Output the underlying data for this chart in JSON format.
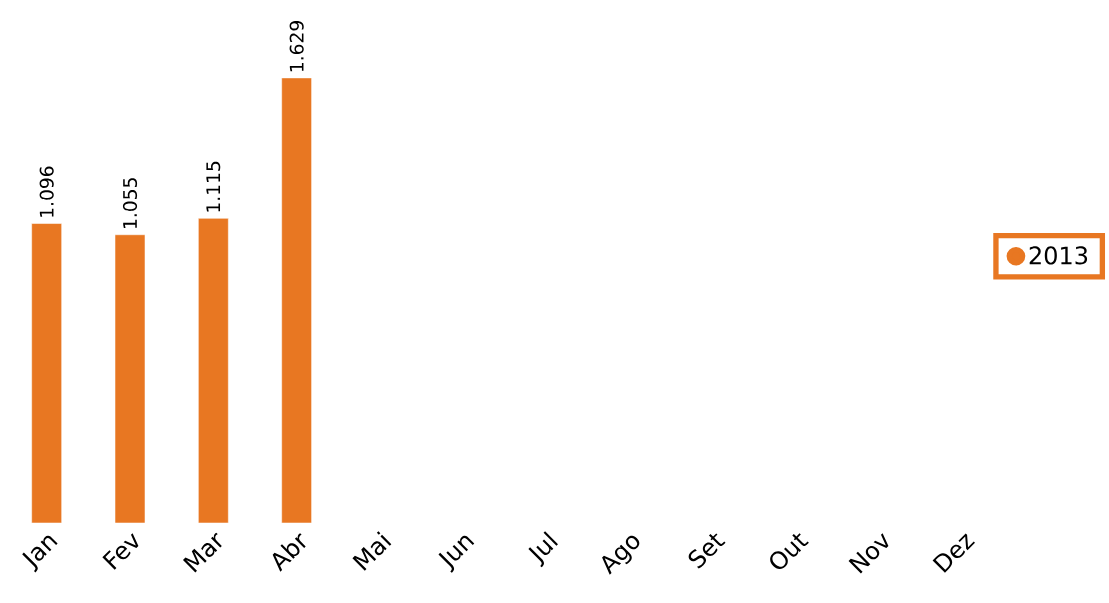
{
  "chart_data": {
    "type": "bar",
    "categories": [
      "Jan",
      "Fev",
      "Mar",
      "Abr",
      "Mai",
      "Jun",
      "Jul",
      "Ago",
      "Set",
      "Out",
      "Nov",
      "Dez"
    ],
    "series": [
      {
        "name": "2013",
        "color": "#e87722",
        "values": [
          1096,
          1055,
          1115,
          1629,
          null,
          null,
          null,
          null,
          null,
          null,
          null,
          null
        ],
        "value_labels": [
          "1.096",
          "1.055",
          "1.115",
          "1.629",
          null,
          null,
          null,
          null,
          null,
          null,
          null,
          null
        ]
      }
    ],
    "tick_labels": "x",
    "legend": "right"
  }
}
